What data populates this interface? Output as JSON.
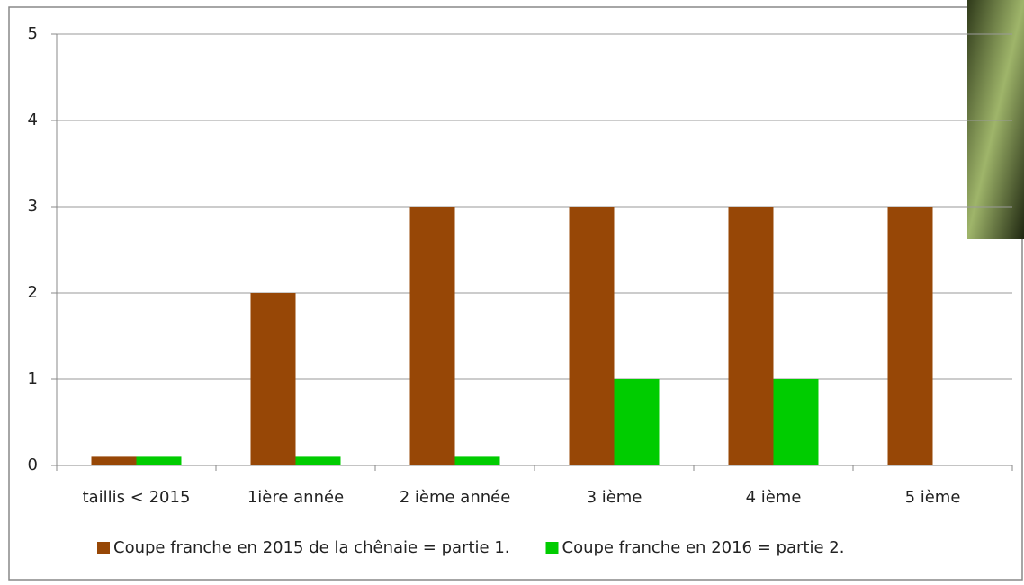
{
  "chart_data": {
    "type": "bar",
    "categories": [
      "taillis < 2015",
      "1ière année",
      "2 ième année",
      "3 ième",
      "4 ième",
      "5 ième"
    ],
    "series": [
      {
        "name": "Coupe franche en 2015 de la chênaie = partie 1.",
        "color": "#974706",
        "values": [
          0.1,
          2,
          3,
          3,
          3,
          3
        ]
      },
      {
        "name": "Coupe franche en 2016 = partie 2.",
        "color": "#00cc00",
        "values": [
          0.1,
          0.1,
          0.1,
          1,
          1,
          0
        ]
      }
    ],
    "ylim": [
      0,
      5
    ],
    "yticks": [
      0,
      1,
      2,
      3,
      4,
      5
    ],
    "grid": true,
    "legend": "bottom"
  }
}
